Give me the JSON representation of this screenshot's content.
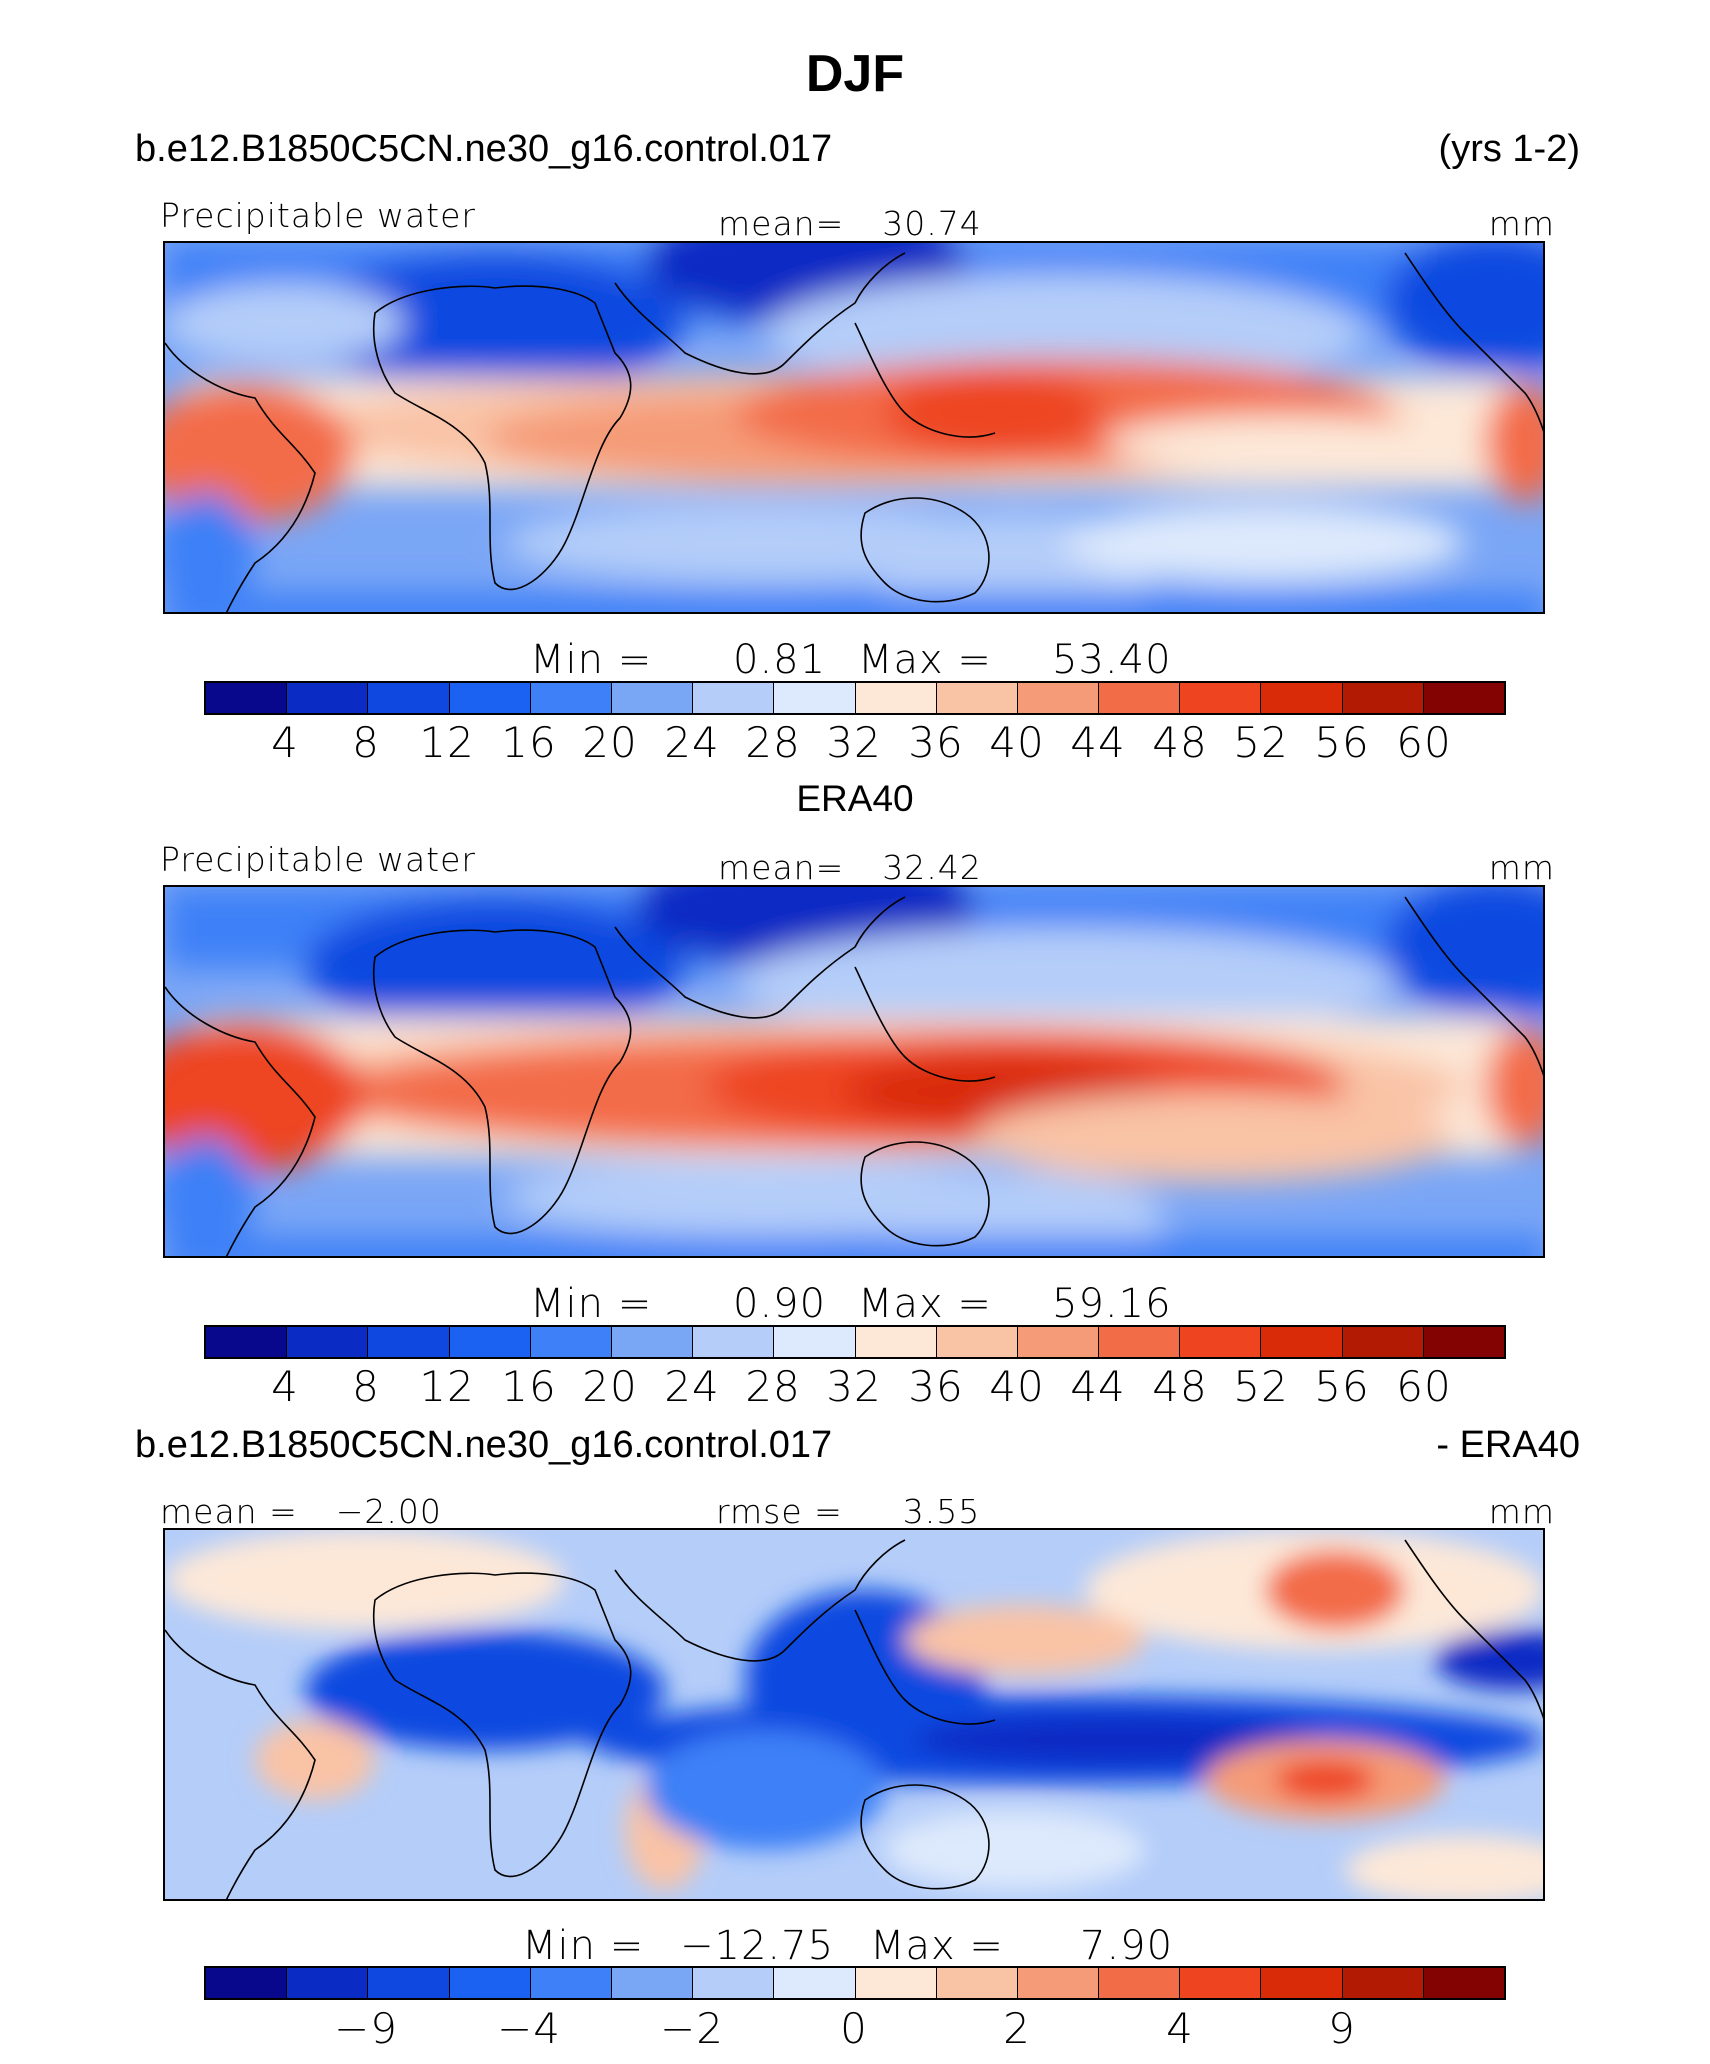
{
  "title": "DJF",
  "case_name": "b.e12.B1850C5CN.ne30_g16.control.017",
  "years": "(yrs 1-2)",
  "palette": [
    "#08088c",
    "#0b2cc4",
    "#0f48e0",
    "#1b62f3",
    "#3d80f7",
    "#7aa6f6",
    "#b4cdf9",
    "#dde9fc",
    "#fde8d8",
    "#f9c3a6",
    "#f59b78",
    "#f36c48",
    "#ee4520",
    "#d92b08",
    "#b21a04",
    "#830303"
  ],
  "panels": [
    {
      "left_label": "Precipitable water",
      "center_label": "mean=",
      "center_value": "30.74",
      "units": "mm",
      "min_label": "Min  =",
      "min_value": "0.81",
      "max_label": "Max  =",
      "max_value": "53.40",
      "ticks": [
        "4",
        "8",
        "12",
        "16",
        "20",
        "24",
        "28",
        "32",
        "36",
        "40",
        "44",
        "48",
        "52",
        "56",
        "60"
      ]
    },
    {
      "header": "ERA40",
      "left_label": "Precipitable water",
      "center_label": "mean=",
      "center_value": "32.42",
      "units": "mm",
      "min_label": "Min  =",
      "min_value": "0.90",
      "max_label": "Max  =",
      "max_value": "59.16",
      "ticks": [
        "4",
        "8",
        "12",
        "16",
        "20",
        "24",
        "28",
        "32",
        "36",
        "40",
        "44",
        "48",
        "52",
        "56",
        "60"
      ]
    },
    {
      "header_left": "b.e12.B1850C5CN.ne30_g16.control.017",
      "header_right": "- ERA40",
      "left_label": "mean  =",
      "left_value": "−2.00",
      "center_label": "rmse  =",
      "center_value": "3.55",
      "units": "mm",
      "min_label": "Min  =",
      "min_value": "−12.75",
      "max_label": "Max  =",
      "max_value": "7.90",
      "ticks": [
        "−9",
        "−4",
        "−2",
        "0",
        "2",
        "4",
        "9"
      ]
    }
  ]
}
